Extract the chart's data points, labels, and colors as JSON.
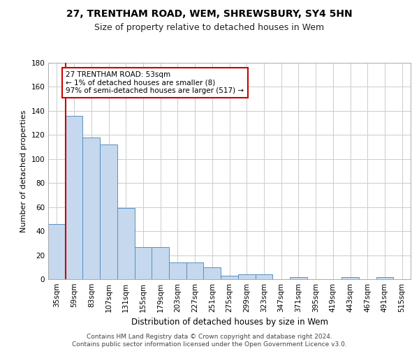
{
  "title1": "27, TRENTHAM ROAD, WEM, SHREWSBURY, SY4 5HN",
  "title2": "Size of property relative to detached houses in Wem",
  "xlabel": "Distribution of detached houses by size in Wem",
  "ylabel": "Number of detached properties",
  "categories": [
    "35sqm",
    "59sqm",
    "83sqm",
    "107sqm",
    "131sqm",
    "155sqm",
    "179sqm",
    "203sqm",
    "227sqm",
    "251sqm",
    "275sqm",
    "299sqm",
    "323sqm",
    "347sqm",
    "371sqm",
    "395sqm",
    "419sqm",
    "443sqm",
    "467sqm",
    "491sqm",
    "515sqm"
  ],
  "values": [
    46,
    136,
    118,
    112,
    59,
    27,
    27,
    14,
    14,
    10,
    3,
    4,
    4,
    0,
    2,
    0,
    0,
    2,
    0,
    2,
    0
  ],
  "bar_color": "#c5d8ed",
  "bar_edge_color": "#5a8fc0",
  "annotation_box_text": "27 TRENTHAM ROAD: 53sqm\n← 1% of detached houses are smaller (8)\n97% of semi-detached houses are larger (517) →",
  "annotation_box_color": "#ffffff",
  "annotation_box_edge_color": "#cc0000",
  "vertical_line_color": "#cc0000",
  "ylim": [
    0,
    180
  ],
  "yticks": [
    0,
    20,
    40,
    60,
    80,
    100,
    120,
    140,
    160,
    180
  ],
  "footer_text": "Contains HM Land Registry data © Crown copyright and database right 2024.\nContains public sector information licensed under the Open Government Licence v3.0.",
  "title1_fontsize": 10,
  "title2_fontsize": 9,
  "xlabel_fontsize": 8.5,
  "ylabel_fontsize": 8,
  "tick_fontsize": 7.5,
  "footer_fontsize": 6.5,
  "annotation_fontsize": 7.5,
  "bg_color": "#ffffff",
  "grid_color": "#cccccc"
}
